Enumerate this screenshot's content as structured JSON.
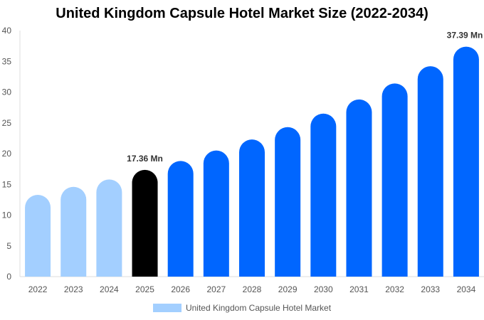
{
  "chart_data": {
    "type": "bar",
    "title": "United Kingdom Capsule Hotel Market Size (2022-2034)",
    "categories": [
      "2022",
      "2023",
      "2024",
      "2025",
      "2026",
      "2027",
      "2028",
      "2029",
      "2030",
      "2031",
      "2032",
      "2033",
      "2034"
    ],
    "series": [
      {
        "name": "United Kingdom Capsule Hotel Market",
        "values": [
          13.3,
          14.6,
          15.8,
          17.36,
          18.8,
          20.5,
          22.3,
          24.3,
          26.5,
          28.8,
          31.4,
          34.2,
          37.39
        ]
      }
    ],
    "data_labels": {
      "3": "17.36 Mn",
      "12": "37.39 Mn"
    },
    "ylim": [
      0,
      40
    ],
    "yticks": [
      0,
      5,
      10,
      15,
      20,
      25,
      30,
      35,
      40
    ],
    "xlabel": "",
    "ylabel": "",
    "grid": false,
    "legend_position": "bottom",
    "colors": {
      "historical": "#a3cfff",
      "current": "#000000",
      "forecast": "#0066ff"
    }
  }
}
